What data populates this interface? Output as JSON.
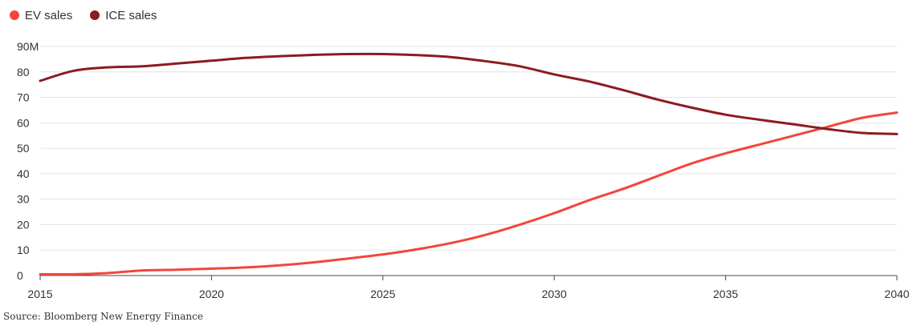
{
  "chart_data": {
    "type": "line",
    "title": "",
    "xlabel": "",
    "ylabel": "",
    "xlim": [
      2015,
      2040
    ],
    "ylim": [
      0,
      90
    ],
    "x_ticks": [
      {
        "value": 2015,
        "label": "2015"
      },
      {
        "value": 2020,
        "label": "2020"
      },
      {
        "value": 2025,
        "label": "2025"
      },
      {
        "value": 2030,
        "label": "2030"
      },
      {
        "value": 2035,
        "label": "2035"
      },
      {
        "value": 2040,
        "label": "2040"
      }
    ],
    "y_ticks": [
      {
        "value": 0,
        "label": "0"
      },
      {
        "value": 10,
        "label": "10"
      },
      {
        "value": 20,
        "label": "20"
      },
      {
        "value": 30,
        "label": "30"
      },
      {
        "value": 40,
        "label": "40"
      },
      {
        "value": 50,
        "label": "50"
      },
      {
        "value": 60,
        "label": "60"
      },
      {
        "value": 70,
        "label": "70"
      },
      {
        "value": 80,
        "label": "80"
      },
      {
        "value": 90,
        "label": "90M"
      }
    ],
    "grid": "horizontal",
    "legend_position": "top-left",
    "x": [
      2015,
      2016,
      2017,
      2018,
      2019,
      2020,
      2021,
      2022,
      2023,
      2024,
      2025,
      2026,
      2027,
      2028,
      2029,
      2030,
      2031,
      2032,
      2033,
      2034,
      2035,
      2036,
      2037,
      2038,
      2039,
      2040
    ],
    "series": [
      {
        "name": "EV sales",
        "color": "#f2453d",
        "values": [
          0.5,
          0.5,
          1,
          2,
          2.3,
          2.7,
          3.2,
          4,
          5.2,
          6.7,
          8.3,
          10.3,
          12.8,
          16,
          20,
          24.5,
          29.5,
          34,
          39,
          44,
          48,
          51.5,
          55,
          58.5,
          62,
          64
        ]
      },
      {
        "name": "ICE sales",
        "color": "#8b1c1f",
        "values": [
          76.5,
          80.5,
          81.8,
          82.2,
          83.3,
          84.4,
          85.5,
          86.2,
          86.7,
          87,
          87,
          86.6,
          85.8,
          84.2,
          82.2,
          79,
          76.3,
          72.9,
          69.2,
          66,
          63.2,
          61.2,
          59.4,
          57.5,
          56,
          55.6
        ]
      }
    ],
    "source": "Source: Bloomberg New Energy Finance"
  }
}
